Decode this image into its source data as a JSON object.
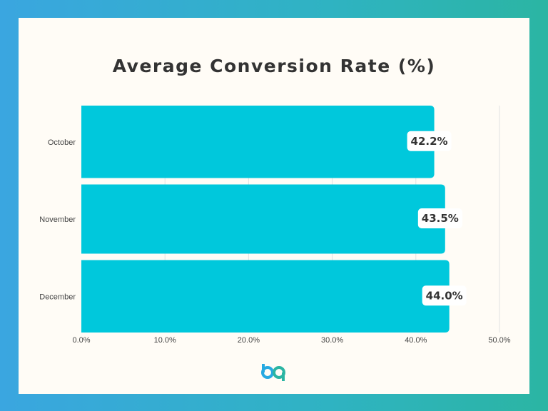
{
  "chart_data": {
    "type": "bar",
    "orientation": "horizontal",
    "title": "Average Conversion Rate (%)",
    "categories": [
      "October",
      "November",
      "December"
    ],
    "values": [
      42.2,
      43.5,
      44.0
    ],
    "data_labels": [
      "42.2%",
      "43.5%",
      "44.0%"
    ],
    "xlim": [
      0,
      50
    ],
    "x_ticks": [
      0,
      10,
      20,
      30,
      40,
      50
    ],
    "x_tick_labels": [
      "0.0%",
      "10.0%",
      "20.0%",
      "30.0%",
      "40.0%",
      "50.0%"
    ],
    "xlabel": "",
    "ylabel": "",
    "grid": "vertical",
    "legend": "none",
    "bar_color": "#00c8dc"
  },
  "logo": {
    "colors": [
      "#27a9e1",
      "#2bb5a3"
    ]
  }
}
